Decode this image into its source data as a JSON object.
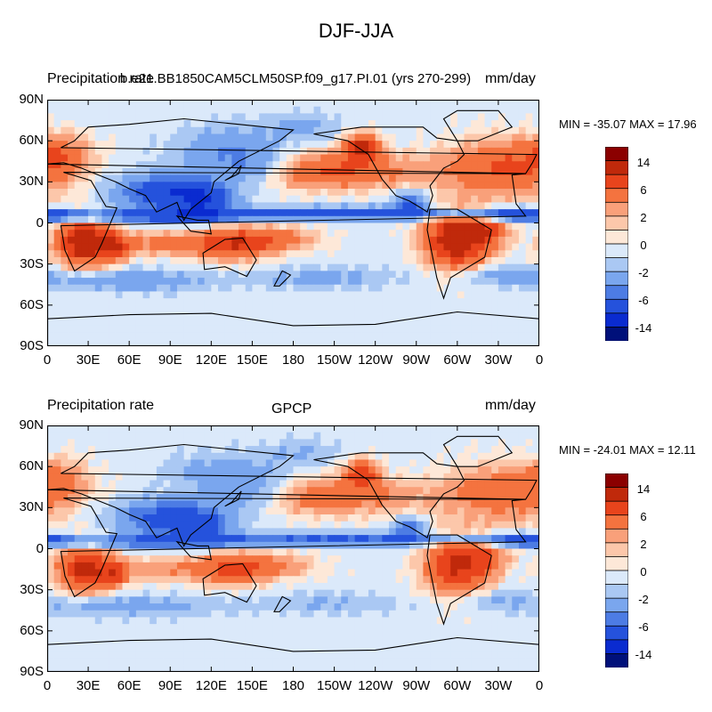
{
  "figure_title": "DJF-JJA",
  "panels": [
    {
      "left_title": "Precipitation rate",
      "center_title": "b.e21.BB1850CAM5CLM50SP.f09_g17.PI.01 (yrs 270-299)",
      "right_title": "mm/day",
      "minmax_text": "MIN = -35.07 MAX =  17.96"
    },
    {
      "left_title": "Precipitation rate",
      "center_title": "GPCP",
      "right_title": "mm/day",
      "minmax_text": "MIN = -24.01 MAX =  12.11"
    }
  ],
  "lat_ticks": [
    "90N",
    "60N",
    "30N",
    "0",
    "30S",
    "60S",
    "90S"
  ],
  "lon_ticks": [
    "0",
    "30E",
    "60E",
    "90E",
    "120E",
    "150E",
    "180",
    "150W",
    "120W",
    "90W",
    "60W",
    "30W",
    "0"
  ],
  "colorbar": {
    "labels": [
      "14",
      "6",
      "2",
      "0",
      "-2",
      "-6",
      "-14"
    ],
    "colors": [
      "#8b0000",
      "#c0290b",
      "#e8441c",
      "#f4733f",
      "#f9a07a",
      "#fcc7aa",
      "#fde8d8",
      "#dbe9fa",
      "#aac8f3",
      "#7aa6ee",
      "#4d7ce4",
      "#2552dc",
      "#0a2bd0",
      "#00107a"
    ]
  },
  "chart_data": [
    {
      "type": "heatmap",
      "title": "DJF-JJA",
      "subtitle": "b.e21.BB1850CAM5CLM50SP.f09_g17.PI.01 (yrs 270-299)",
      "variable": "Precipitation rate",
      "units": "mm/day",
      "min": -35.07,
      "max": 17.96,
      "xlim": [
        0,
        360
      ],
      "ylim": [
        -90,
        90
      ],
      "levels": [
        -14,
        -6,
        -2,
        0,
        2,
        6,
        14
      ]
    },
    {
      "type": "heatmap",
      "title": "DJF-JJA",
      "subtitle": "GPCP",
      "variable": "Precipitation rate",
      "units": "mm/day",
      "min": -24.01,
      "max": 12.11,
      "xlim": [
        0,
        360
      ],
      "ylim": [
        -90,
        90
      ],
      "levels": [
        -14,
        -6,
        -2,
        0,
        2,
        6,
        14
      ]
    }
  ]
}
